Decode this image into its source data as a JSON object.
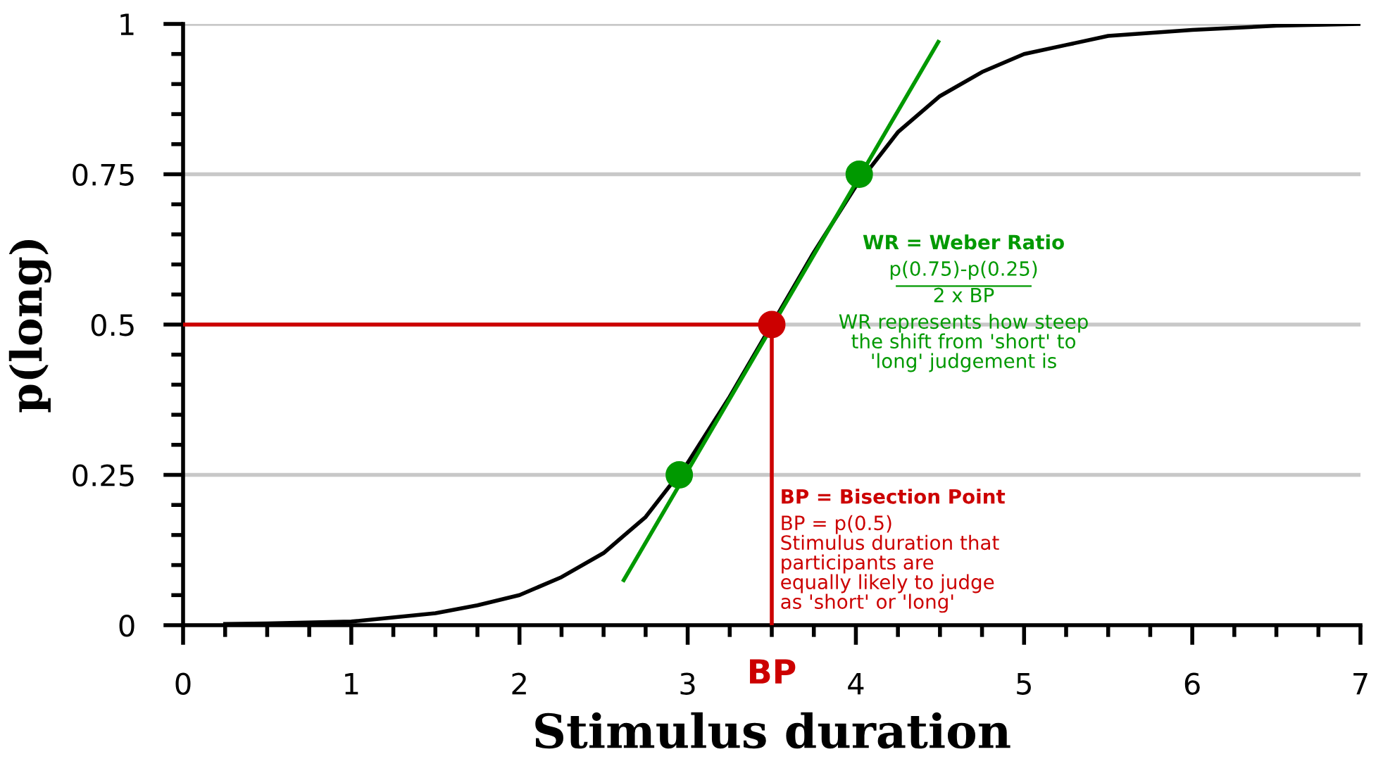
{
  "chart_data": {
    "type": "line",
    "xlabel": "Stimulus duration",
    "ylabel": "p(long)",
    "xlim": [
      0,
      7
    ],
    "ylim": [
      0,
      1
    ],
    "xticks": [
      0,
      1,
      2,
      3,
      4,
      5,
      6,
      7
    ],
    "yticks": [
      0,
      0.25,
      0.5,
      0.75,
      1
    ],
    "grid": "y",
    "series": [
      {
        "color": "#000000",
        "marker": "none",
        "x": [
          0.25,
          0.5,
          1,
          1.5,
          1.75,
          2,
          2.25,
          2.5,
          2.75,
          3,
          3.25,
          3.75,
          4,
          4.25,
          4.5,
          4.75,
          5,
          5.25,
          5.5,
          6,
          6.5,
          7
        ],
        "values": [
          0.002,
          0.003,
          0.006,
          0.02,
          0.033,
          0.05,
          0.08,
          0.12,
          0.18,
          0.27,
          0.38,
          0.62,
          0.73,
          0.82,
          0.88,
          0.92,
          0.95,
          0.965,
          0.98,
          0.99,
          0.997,
          1.0
        ]
      },
      {
        "color": "#009900",
        "marker": "none",
        "x": [
          2.62,
          4.49
        ],
        "values": [
          0.075,
          0.97
        ]
      },
      {
        "color": "#cc0000",
        "marker": "none",
        "x": [
          0,
          3.5
        ],
        "values": [
          0.5,
          0.5
        ]
      },
      {
        "color": "#cc0000",
        "marker": "none",
        "x": [
          3.5,
          3.5
        ],
        "values": [
          0,
          0.5
        ]
      },
      {
        "type": "scatter",
        "marker": "circle",
        "x": [
          2.95,
          3.5,
          4.02
        ],
        "values": [
          0.25,
          0.5,
          0.75
        ],
        "colors": [
          "#009900",
          "#cc0000",
          "#009900"
        ]
      }
    ],
    "annotations": [
      "WR = Weber Ratio",
      "p(0.75)-p(0.25)",
      "2 x BP",
      "WR represents how steep\nthe shift from 'short' to\n'long' judgement is",
      "BP",
      "BP = Bisection Point",
      "BP = p(0.5)\nStimulus duration that\nparticipants are\nequally likely to judge\nas 'short' or 'long'"
    ]
  }
}
